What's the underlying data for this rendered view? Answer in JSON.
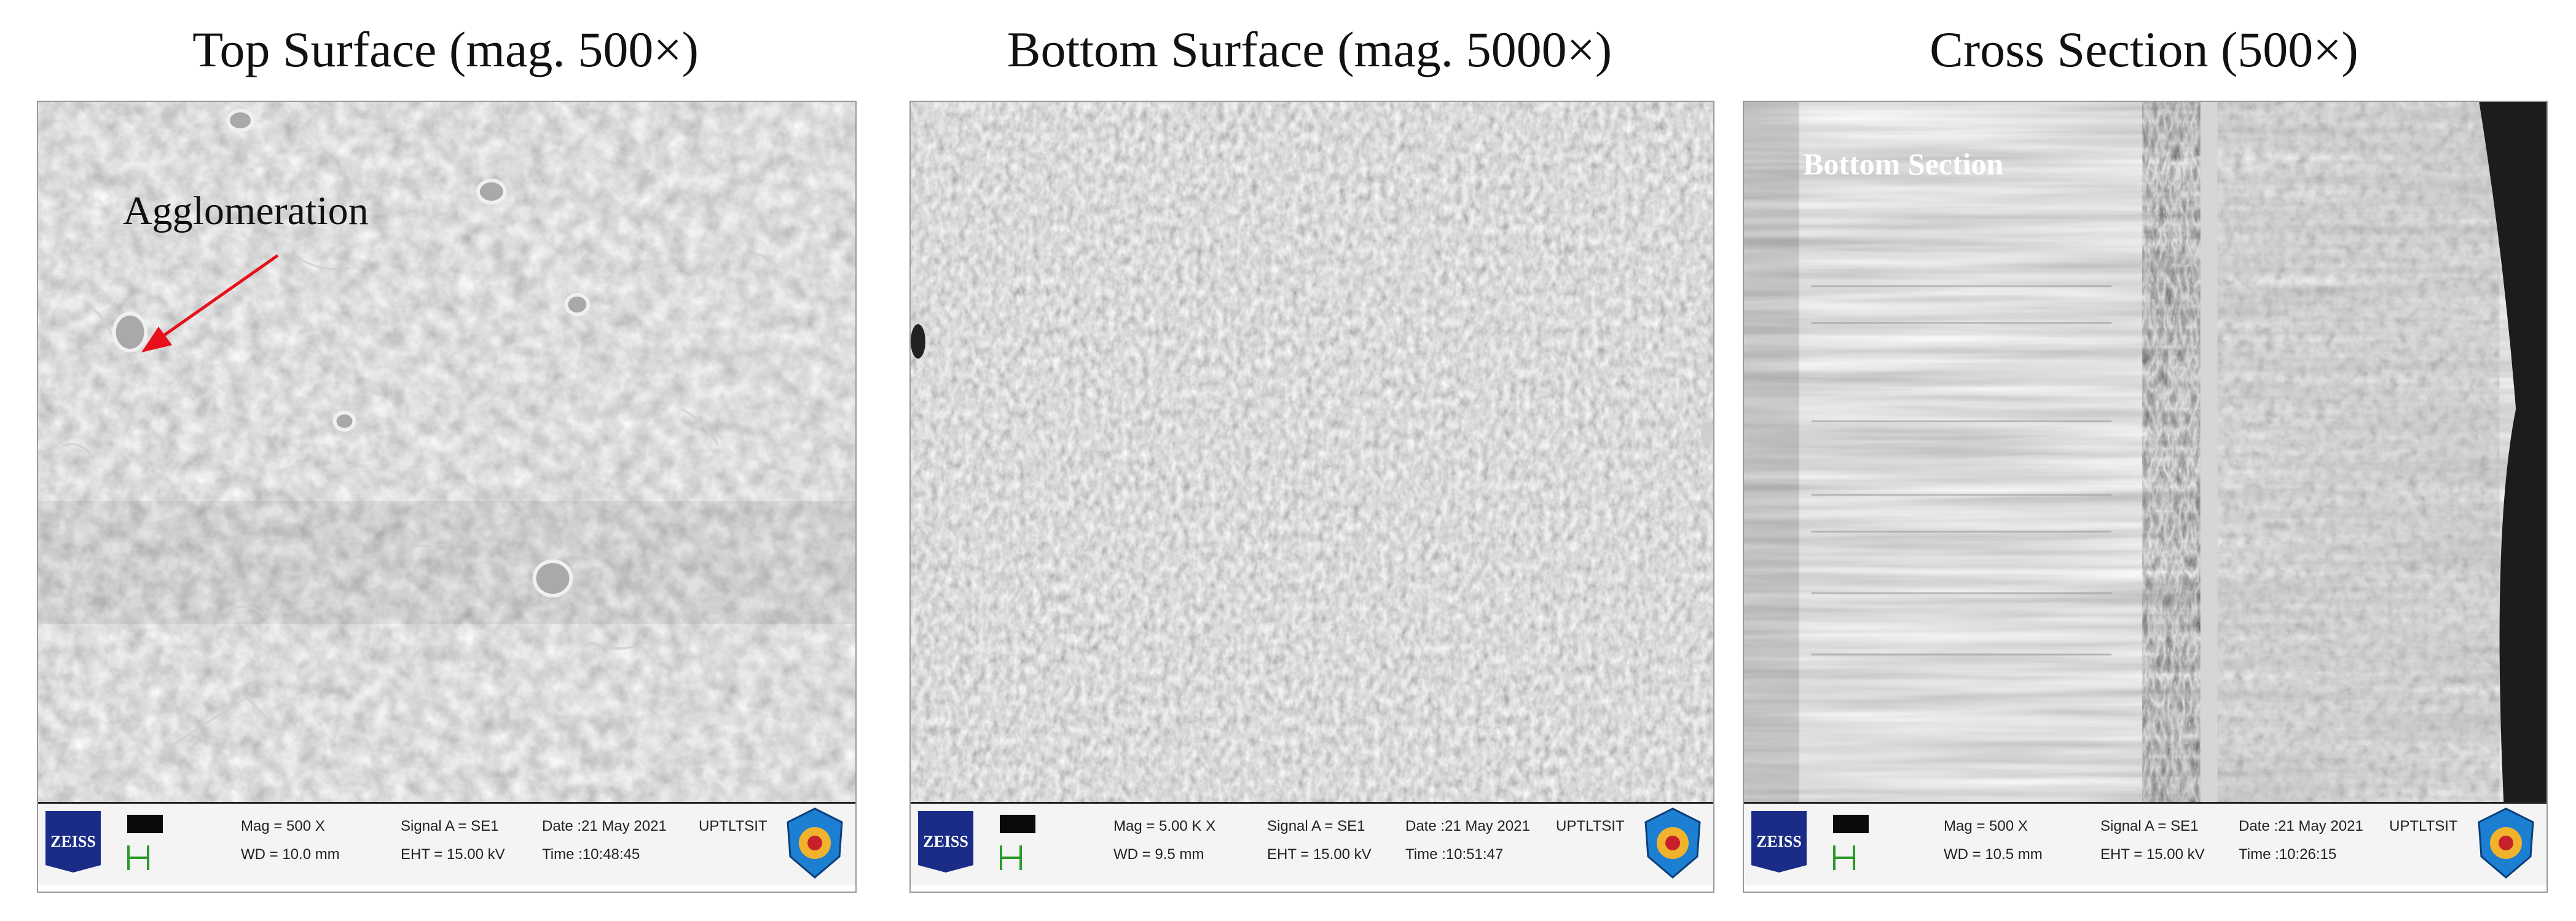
{
  "panels": [
    {
      "caption": "Top Surface (mag. 500×)",
      "info": {
        "logo": "ZEISS",
        "mag": "Mag =   500 X",
        "wd": "WD = 10.0 mm",
        "signal": "Signal A = SE1",
        "eht": "EHT = 15.00 kV",
        "date": "Date :21 May 2021",
        "time": "Time :10:48:45",
        "lab": "UPTLTSIT"
      },
      "annotation": "Agglomeration"
    },
    {
      "caption": "Bottom Surface (mag. 5000×)",
      "info": {
        "logo": "ZEISS",
        "mag": "Mag =   5.00 K X",
        "wd": "WD =  9.5 mm",
        "signal": "Signal A = SE1",
        "eht": "EHT = 15.00 kV",
        "date": "Date :21 May 2021",
        "time": "Time :10:51:47",
        "lab": "UPTLTSIT"
      }
    },
    {
      "caption": "Cross Section (500×)",
      "info": {
        "logo": "ZEISS",
        "mag": "Mag =   500 X",
        "wd": "WD = 10.5 mm",
        "signal": "Signal A = SE1",
        "eht": "EHT = 15.00 kV",
        "date": "Date :21 May 2021",
        "time": "Time :10:26:15",
        "lab": "UPTLTSIT"
      },
      "annotation": "Bottom Section"
    }
  ],
  "colors": {
    "arrow": "#e8101a",
    "logo": "#1a2c87",
    "scale_bar": "#2a9a2a"
  }
}
